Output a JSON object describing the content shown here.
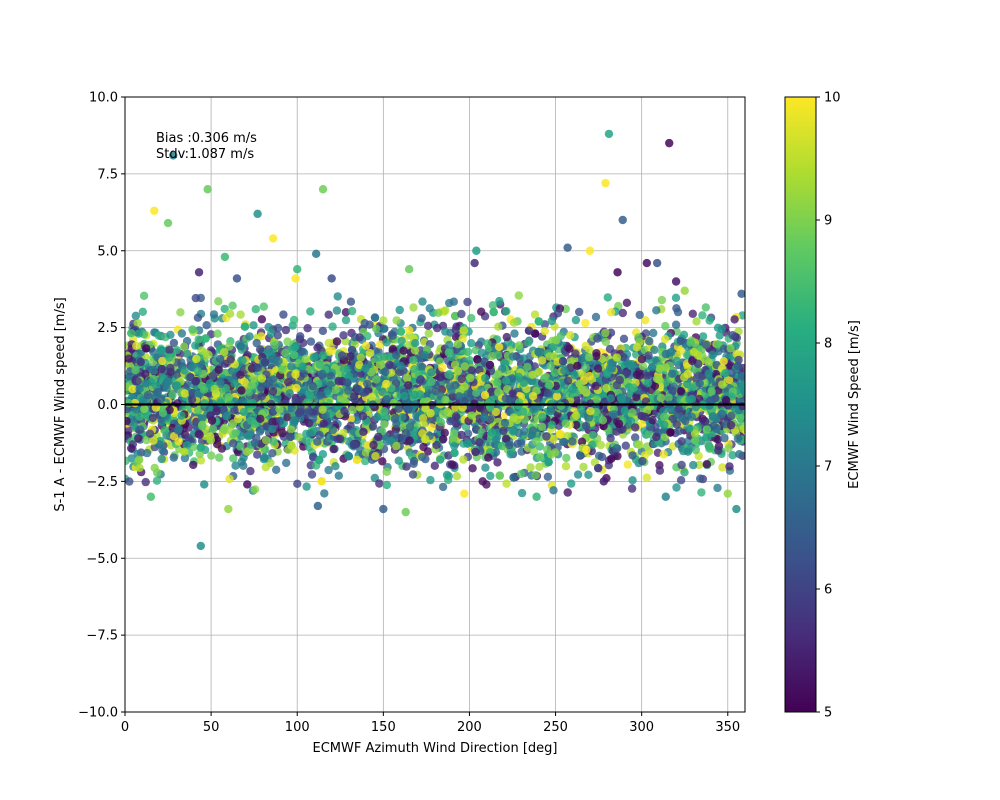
{
  "chart_data": {
    "type": "scatter",
    "title": "",
    "xlabel": "ECMWF Azimuth Wind Direction [deg]",
    "ylabel": "S-1 A - ECMWF Wind speed [m/s]",
    "xlim": [
      0,
      360
    ],
    "ylim": [
      -10,
      10
    ],
    "xticks": [
      0,
      50,
      100,
      150,
      200,
      250,
      300,
      350
    ],
    "yticks": [
      -10.0,
      -7.5,
      -5.0,
      -2.5,
      0.0,
      2.5,
      5.0,
      7.5,
      10.0
    ],
    "grid": true,
    "zero_line": 0,
    "annotations": [
      "Bias :0.306 m/s",
      "Stdv:1.087 m/s"
    ],
    "colorbar": {
      "label": "ECMWF Wind Speed [m/s]",
      "range": [
        5,
        10
      ],
      "ticks": [
        5,
        6,
        7,
        8,
        9,
        10
      ],
      "colormap": "viridis"
    },
    "cloud": {
      "description_stats": {
        "bias": 0.306,
        "stdv": 1.087
      },
      "approx_point_count": 5000
    },
    "notable_points": [
      {
        "x": 28,
        "y": 8.1,
        "c": 7.2
      },
      {
        "x": 17,
        "y": 6.3,
        "c": 10.0
      },
      {
        "x": 25,
        "y": 5.9,
        "c": 8.8
      },
      {
        "x": 48,
        "y": 7.0,
        "c": 8.8
      },
      {
        "x": 77,
        "y": 6.2,
        "c": 7.5
      },
      {
        "x": 86,
        "y": 5.4,
        "c": 10.0
      },
      {
        "x": 115,
        "y": 7.0,
        "c": 8.9
      },
      {
        "x": 111,
        "y": 4.9,
        "c": 7.0
      },
      {
        "x": 58,
        "y": 4.8,
        "c": 8.4
      },
      {
        "x": 43,
        "y": 4.3,
        "c": 5.5
      },
      {
        "x": 65,
        "y": 4.1,
        "c": 6.3
      },
      {
        "x": 100,
        "y": 4.4,
        "c": 8.3
      },
      {
        "x": 99,
        "y": 4.1,
        "c": 10.0
      },
      {
        "x": 120,
        "y": 4.1,
        "c": 6.2
      },
      {
        "x": 165,
        "y": 4.4,
        "c": 8.8
      },
      {
        "x": 203,
        "y": 4.6,
        "c": 5.6
      },
      {
        "x": 204,
        "y": 5.0,
        "c": 7.8
      },
      {
        "x": 257,
        "y": 5.1,
        "c": 6.5
      },
      {
        "x": 270,
        "y": 5.0,
        "c": 10.0
      },
      {
        "x": 281,
        "y": 8.8,
        "c": 7.9
      },
      {
        "x": 316,
        "y": 8.5,
        "c": 5.1
      },
      {
        "x": 279,
        "y": 7.2,
        "c": 10.0
      },
      {
        "x": 289,
        "y": 6.0,
        "c": 6.5
      },
      {
        "x": 303,
        "y": 4.6,
        "c": 5.2
      },
      {
        "x": 309,
        "y": 4.6,
        "c": 6.3
      },
      {
        "x": 286,
        "y": 4.3,
        "c": 5.1
      },
      {
        "x": 320,
        "y": 4.0,
        "c": 5.3
      },
      {
        "x": 325,
        "y": 3.7,
        "c": 9.2
      },
      {
        "x": 358,
        "y": 3.6,
        "c": 6.5
      },
      {
        "x": 44,
        "y": -4.6,
        "c": 7.5
      },
      {
        "x": 112,
        "y": -3.3,
        "c": 6.6
      },
      {
        "x": 150,
        "y": -3.4,
        "c": 6.5
      },
      {
        "x": 163,
        "y": -3.5,
        "c": 8.9
      },
      {
        "x": 60,
        "y": -3.4,
        "c": 9.2
      },
      {
        "x": 15,
        "y": -3.0,
        "c": 8.5
      },
      {
        "x": 314,
        "y": -3.0,
        "c": 7.3
      },
      {
        "x": 355,
        "y": -3.4,
        "c": 7.5
      },
      {
        "x": 350,
        "y": -2.9,
        "c": 9.2
      },
      {
        "x": 71,
        "y": -2.6,
        "c": 5.2
      },
      {
        "x": 46,
        "y": -2.6,
        "c": 7.5
      },
      {
        "x": 278,
        "y": -2.5,
        "c": 5.4
      },
      {
        "x": 239,
        "y": -3.0,
        "c": 8.3
      },
      {
        "x": 197,
        "y": -2.9,
        "c": 10.0
      }
    ]
  }
}
